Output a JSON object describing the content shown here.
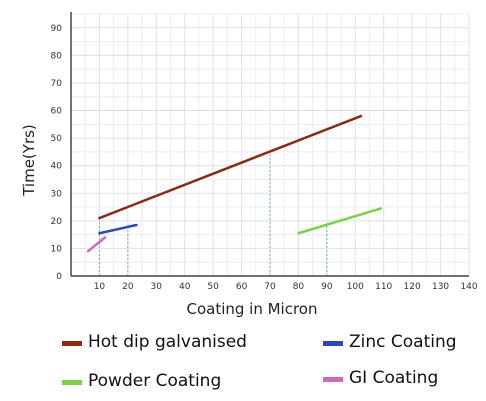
{
  "chart_data": {
    "type": "line",
    "title": "",
    "xlabel": "Coating in Micron",
    "ylabel": "Time(Yrs)",
    "xlim": [
      0,
      140
    ],
    "ylim": [
      0,
      95
    ],
    "x_ticks": [
      10,
      20,
      30,
      40,
      50,
      60,
      70,
      80,
      90,
      100,
      110,
      120,
      130,
      140
    ],
    "y_ticks": [
      0,
      10,
      20,
      30,
      40,
      50,
      60,
      70,
      80,
      90
    ],
    "grid": true,
    "legend_position": "bottom",
    "series": [
      {
        "name": "Hot dip galvanised",
        "color": "#8b2a17",
        "x": [
          10,
          102
        ],
        "y": [
          21,
          58
        ]
      },
      {
        "name": "Zinc Coating",
        "color": "#2e46b8",
        "x": [
          10,
          23
        ],
        "y": [
          15.5,
          18.5
        ]
      },
      {
        "name": "Powder Coating",
        "color": "#7cd04a",
        "x": [
          80,
          109
        ],
        "y": [
          15.5,
          24.5
        ]
      },
      {
        "name": "GI Coating",
        "color": "#d06ab8",
        "x": [
          6,
          12
        ],
        "y": [
          9,
          14
        ]
      }
    ],
    "reference_lines_x": [
      10,
      20,
      70,
      90
    ]
  }
}
